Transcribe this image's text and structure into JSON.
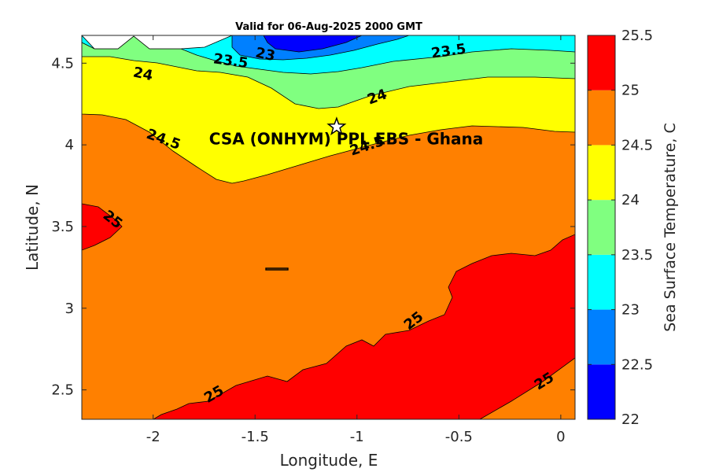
{
  "chart_data": {
    "type": "contourf",
    "title": "Valid for 06-Aug-2025 2000 GMT",
    "xlabel": "Longitude, E",
    "ylabel": "Latitude, N",
    "xlim": [
      -2.35,
      0.07
    ],
    "ylim": [
      2.32,
      4.67
    ],
    "xticks": [
      -2,
      -1.5,
      -1,
      -0.5,
      0
    ],
    "xtick_labels": [
      "-2",
      "-1.5",
      "-1",
      "-0.5",
      "0"
    ],
    "yticks": [
      2.5,
      3,
      3.5,
      4,
      4.5
    ],
    "ytick_labels": [
      "2.5",
      "3",
      "3.5",
      "4",
      "4.5"
    ],
    "colorbar": {
      "label": "Sea Surface Temperature, C",
      "levels": [
        22,
        22.5,
        23,
        23.5,
        24,
        24.5,
        25,
        25.5
      ],
      "tick_labels": [
        "22",
        "22.5",
        "23",
        "23.5",
        "24",
        "24.5",
        "25",
        "25.5"
      ],
      "colors": [
        "#0000ff",
        "#0080ff",
        "#00ffff",
        "#80ff80",
        "#ffff00",
        "#ff8000",
        "#ff0000"
      ]
    },
    "contour_labels": [
      {
        "text": "23",
        "lon": -1.45,
        "lat": 4.55
      },
      {
        "text": "23.5",
        "lon": -1.62,
        "lat": 4.51
      },
      {
        "text": "23.5",
        "lon": -0.55,
        "lat": 4.57
      },
      {
        "text": "24",
        "lon": -2.05,
        "lat": 4.43
      },
      {
        "text": "24",
        "lon": -0.9,
        "lat": 4.29
      },
      {
        "text": "24.5",
        "lon": -1.95,
        "lat": 4.03
      },
      {
        "text": "24.5",
        "lon": -0.95,
        "lat": 3.99
      },
      {
        "text": "25",
        "lon": -2.2,
        "lat": 3.54
      },
      {
        "text": "25",
        "lon": -0.72,
        "lat": 2.92
      },
      {
        "text": "25",
        "lon": -1.7,
        "lat": 2.47
      },
      {
        "text": "25",
        "lon": -0.08,
        "lat": 2.55
      }
    ],
    "marker": {
      "label": "CSA (ONHYM) PPL EBS  - Ghana",
      "lon": -1.1,
      "lat": 4.11,
      "symbol": "star"
    }
  }
}
